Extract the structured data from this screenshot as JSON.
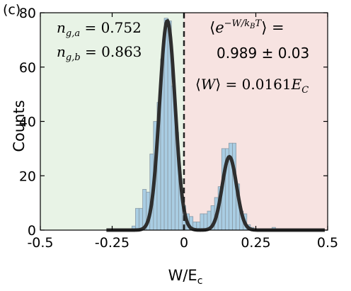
{
  "panel_label": "(c)",
  "colors": {
    "left_region": "#e8f3e6",
    "right_region": "#f7e3e1",
    "bar_fill": "#a9cde3",
    "bar_edge": "#8a9aa5",
    "fit_line": "#2e2e2e",
    "divider": "#222222"
  },
  "annotations": {
    "ng_a": "n_{g,a} = 0.752",
    "ng_b": "n_{g,b} = 0.863",
    "jarzynski_line1": "⟨e^{−W/k_BT}⟩ =",
    "jarzynski_line2": "0.989 ± 0.03",
    "mean_work": "⟨W⟩ = 0.0161E_C"
  },
  "chart_data": {
    "type": "bar",
    "xlabel": "W/E_c",
    "ylabel": "Counts",
    "xlim": [
      -0.5,
      0.5
    ],
    "ylim": [
      0,
      80
    ],
    "grid": false,
    "xticks": [
      -0.5,
      -0.25,
      0,
      0.25,
      0.5
    ],
    "xtick_labels": [
      "-0.5",
      "-0.25",
      "0",
      "0.25",
      "0.5"
    ],
    "yticks": [
      0,
      20,
      40,
      60,
      80
    ],
    "ytick_labels": [
      "0",
      "20",
      "40",
      "60",
      "80"
    ],
    "bin_width": 0.0125,
    "bins": [
      {
        "x": -0.1875,
        "count": 0.5
      },
      {
        "x": -0.175,
        "count": 1.5
      },
      {
        "x": -0.1625,
        "count": 8
      },
      {
        "x": -0.15,
        "count": 8
      },
      {
        "x": -0.1375,
        "count": 15
      },
      {
        "x": -0.125,
        "count": 14
      },
      {
        "x": -0.1125,
        "count": 28
      },
      {
        "x": -0.1,
        "count": 40
      },
      {
        "x": -0.0875,
        "count": 47
      },
      {
        "x": -0.075,
        "count": 63
      },
      {
        "x": -0.0625,
        "count": 78
      },
      {
        "x": -0.05,
        "count": 77
      },
      {
        "x": -0.0375,
        "count": 53
      },
      {
        "x": -0.025,
        "count": 36
      },
      {
        "x": -0.0125,
        "count": 19
      },
      {
        "x": 0.0,
        "count": 9
      },
      {
        "x": 0.0125,
        "count": 6
      },
      {
        "x": 0.025,
        "count": 5
      },
      {
        "x": 0.0375,
        "count": 3
      },
      {
        "x": 0.05,
        "count": 3
      },
      {
        "x": 0.0625,
        "count": 6
      },
      {
        "x": 0.075,
        "count": 6
      },
      {
        "x": 0.0875,
        "count": 7
      },
      {
        "x": 0.1,
        "count": 9
      },
      {
        "x": 0.1125,
        "count": 12
      },
      {
        "x": 0.125,
        "count": 16
      },
      {
        "x": 0.1375,
        "count": 30
      },
      {
        "x": 0.15,
        "count": 30
      },
      {
        "x": 0.1625,
        "count": 32
      },
      {
        "x": 0.175,
        "count": 32
      },
      {
        "x": 0.1875,
        "count": 17
      },
      {
        "x": 0.2,
        "count": 7
      },
      {
        "x": 0.2125,
        "count": 6
      },
      {
        "x": 0.225,
        "count": 2
      },
      {
        "x": 0.2375,
        "count": 1
      },
      {
        "x": 0.25,
        "count": 0.5
      },
      {
        "x": 0.3125,
        "count": 1
      }
    ],
    "fit": {
      "type": "sum_of_gaussians",
      "x_range": [
        -0.27,
        0.49
      ],
      "components": [
        {
          "amplitude": 77,
          "center": -0.058,
          "sigma": 0.027
        },
        {
          "amplitude": 27,
          "center": 0.158,
          "sigma": 0.025
        }
      ]
    },
    "divider_x": 0.0,
    "regions": [
      {
        "from": -0.5,
        "to": 0.0,
        "label": "left"
      },
      {
        "from": 0.0,
        "to": 0.5,
        "label": "right"
      }
    ]
  }
}
